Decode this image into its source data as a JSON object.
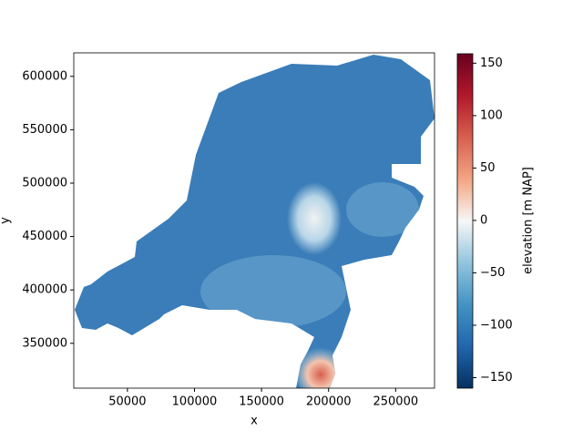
{
  "chart_data": {
    "type": "tripcolor",
    "xlabel": "x",
    "ylabel": "y",
    "xlim": [
      10000,
      279000
    ],
    "ylim": [
      308000,
      622000
    ],
    "xticks": [
      50000,
      100000,
      150000,
      200000,
      250000
    ],
    "yticks": [
      350000,
      400000,
      450000,
      500000,
      550000,
      600000
    ],
    "colorbar": {
      "label": "elevation [m NAP]",
      "colormap": "RdBu_r",
      "lim": [
        -160,
        159
      ],
      "ticks": [
        {
          "value": -150,
          "label": "−150"
        },
        {
          "value": -100,
          "label": "−100"
        },
        {
          "value": -50,
          "label": "−50"
        },
        0,
        50,
        100,
        150
      ]
    }
  }
}
